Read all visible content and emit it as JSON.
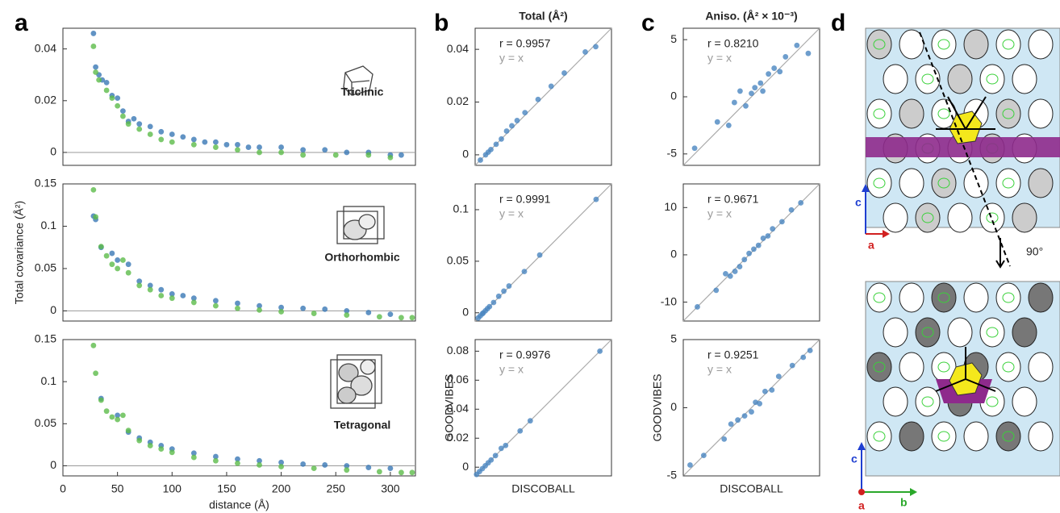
{
  "panel_labels": [
    "a",
    "b",
    "c",
    "d"
  ],
  "diagram": {
    "labels": [
      "c",
      "a",
      "90°",
      "c",
      "b",
      "a"
    ]
  },
  "chart_data": [
    {
      "type": "scatter",
      "annotations": [
        "Triclinic"
      ],
      "xlim": [
        0,
        323
      ],
      "ylim": [
        -0.005,
        0.048
      ],
      "yticks": [
        0,
        0.02,
        0.04
      ],
      "zero_line": true,
      "series": [
        {
          "color": "#3a78b5",
          "x": [
            28,
            30,
            33,
            36,
            40,
            45,
            50,
            55,
            60,
            65,
            70,
            80,
            90,
            100,
            110,
            120,
            130,
            140,
            150,
            160,
            170,
            180,
            200,
            220,
            240,
            260,
            280,
            300,
            310
          ],
          "values": [
            0.046,
            0.033,
            0.03,
            0.028,
            0.027,
            0.022,
            0.021,
            0.016,
            0.012,
            0.013,
            0.011,
            0.01,
            0.008,
            0.007,
            0.006,
            0.005,
            0.004,
            0.004,
            0.003,
            0.003,
            0.002,
            0.002,
            0.002,
            0.001,
            0.001,
            0.0,
            0.0,
            -0.001,
            -0.001
          ]
        },
        {
          "color": "#5dbb4a",
          "x": [
            28,
            30,
            33,
            40,
            45,
            50,
            55,
            60,
            70,
            80,
            90,
            100,
            120,
            140,
            160,
            180,
            200,
            220,
            250,
            280,
            300
          ],
          "values": [
            0.041,
            0.031,
            0.028,
            0.024,
            0.021,
            0.018,
            0.014,
            0.011,
            0.009,
            0.007,
            0.005,
            0.004,
            0.003,
            0.002,
            0.001,
            0.0,
            0.0,
            -0.001,
            -0.001,
            -0.001,
            -0.002
          ]
        }
      ]
    },
    {
      "type": "scatter",
      "annotations": [
        "Orthorhombic"
      ],
      "ylabel": "Total covariance (Å²)",
      "xlim": [
        0,
        323
      ],
      "ylim": [
        -0.012,
        0.15
      ],
      "yticks": [
        0,
        0.05,
        0.1,
        0.15
      ],
      "zero_line": true,
      "series": [
        {
          "color": "#3a78b5",
          "x": [
            28,
            30,
            35,
            45,
            50,
            60,
            70,
            80,
            90,
            100,
            110,
            120,
            140,
            160,
            180,
            200,
            220,
            240,
            260,
            280,
            300
          ],
          "values": [
            0.112,
            0.108,
            0.075,
            0.068,
            0.06,
            0.055,
            0.035,
            0.03,
            0.025,
            0.02,
            0.018,
            0.015,
            0.012,
            0.009,
            0.006,
            0.004,
            0.003,
            0.002,
            0,
            -0.002,
            -0.004
          ]
        },
        {
          "color": "#5dbb4a",
          "x": [
            28,
            30,
            35,
            40,
            45,
            50,
            55,
            60,
            70,
            80,
            90,
            100,
            120,
            140,
            160,
            180,
            200,
            230,
            260,
            290,
            310,
            320
          ],
          "values": [
            0.143,
            0.111,
            0.076,
            0.065,
            0.055,
            0.05,
            0.06,
            0.045,
            0.03,
            0.025,
            0.018,
            0.015,
            0.01,
            0.006,
            0.003,
            0.001,
            -0.001,
            -0.003,
            -0.005,
            -0.007,
            -0.008,
            -0.008
          ]
        }
      ]
    },
    {
      "type": "scatter",
      "annotations": [
        "Tetragonal"
      ],
      "xlabel": "distance (Å)",
      "xlim": [
        0,
        323
      ],
      "xticks": [
        0,
        50,
        100,
        150,
        200,
        250,
        300
      ],
      "ylim": [
        -0.012,
        0.15
      ],
      "yticks": [
        0,
        0.05,
        0.1,
        0.15
      ],
      "zero_line": true,
      "series": [
        {
          "color": "#3a78b5",
          "x": [
            35,
            50,
            60,
            70,
            80,
            90,
            100,
            120,
            140,
            160,
            180,
            200,
            220,
            240,
            260,
            280,
            300
          ],
          "values": [
            0.08,
            0.06,
            0.04,
            0.033,
            0.028,
            0.024,
            0.02,
            0.015,
            0.011,
            0.008,
            0.006,
            0.004,
            0.002,
            0.001,
            0,
            -0.002,
            -0.003
          ]
        },
        {
          "color": "#5dbb4a",
          "x": [
            28,
            30,
            35,
            40,
            45,
            50,
            55,
            60,
            70,
            80,
            90,
            100,
            120,
            140,
            160,
            180,
            200,
            230,
            260,
            290,
            310,
            320
          ],
          "values": [
            0.143,
            0.11,
            0.078,
            0.065,
            0.058,
            0.055,
            0.06,
            0.042,
            0.03,
            0.024,
            0.02,
            0.016,
            0.01,
            0.006,
            0.003,
            0.001,
            -0.001,
            -0.003,
            -0.005,
            -0.007,
            -0.008,
            -0.008
          ]
        }
      ]
    },
    {
      "type": "scatter",
      "title": "Total (Å²)",
      "annotations": [
        "r = 0.9957",
        "y = x"
      ],
      "identity_line": true,
      "xlim": [
        -0.004,
        0.048
      ],
      "ylim": [
        -0.004,
        0.048
      ],
      "yticks": [
        0,
        0.02,
        0.04
      ],
      "series": [
        {
          "color": "#4a86c0",
          "x": [
            -0.002,
            0,
            0.001,
            0.002,
            0.004,
            0.006,
            0.008,
            0.01,
            0.012,
            0.015,
            0.02,
            0.025,
            0.03,
            0.038,
            0.042
          ],
          "values": [
            -0.002,
            0,
            0.001,
            0.002,
            0.004,
            0.006,
            0.009,
            0.011,
            0.013,
            0.016,
            0.021,
            0.026,
            0.031,
            0.039,
            0.041
          ]
        }
      ]
    },
    {
      "type": "scatter",
      "annotations": [
        "r = 0.9991",
        "y = x"
      ],
      "identity_line": true,
      "xlim": [
        -0.008,
        0.125
      ],
      "ylim": [
        -0.008,
        0.125
      ],
      "yticks": [
        0,
        0.05,
        0.1
      ],
      "series": [
        {
          "color": "#4a86c0",
          "x": [
            -0.005,
            -0.003,
            -0.001,
            0,
            0.002,
            0.004,
            0.006,
            0.01,
            0.015,
            0.02,
            0.025,
            0.04,
            0.055,
            0.11
          ],
          "values": [
            -0.005,
            -0.003,
            -0.001,
            0,
            0.002,
            0.004,
            0.006,
            0.01,
            0.016,
            0.021,
            0.026,
            0.04,
            0.056,
            0.11
          ]
        }
      ]
    },
    {
      "type": "scatter",
      "annotations": [
        "r = 0.9976",
        "y = x"
      ],
      "identity_line": true,
      "xlabel": "DISCOBALL",
      "ylabel": "GOODVIBES",
      "xlim": [
        -0.006,
        0.088
      ],
      "ylim": [
        -0.006,
        0.088
      ],
      "yticks": [
        0,
        0.02,
        0.04,
        0.06,
        0.08
      ],
      "series": [
        {
          "color": "#4a86c0",
          "x": [
            -0.005,
            -0.003,
            -0.001,
            0.001,
            0.003,
            0.005,
            0.008,
            0.012,
            0.015,
            0.025,
            0.032,
            0.08
          ],
          "values": [
            -0.005,
            -0.003,
            -0.001,
            0.001,
            0.003,
            0.005,
            0.008,
            0.013,
            0.015,
            0.025,
            0.032,
            0.08
          ]
        }
      ]
    },
    {
      "type": "scatter",
      "title": "Aniso. (Å² × 10⁻³)",
      "annotations": [
        "r = 0.8210",
        "y = x"
      ],
      "identity_line": true,
      "xlim": [
        -6,
        6
      ],
      "ylim": [
        -6,
        6
      ],
      "yticks": [
        -5,
        0,
        5
      ],
      "series": [
        {
          "color": "#4a86c0",
          "x": [
            -5,
            -3,
            -2,
            -1.5,
            -1,
            -0.5,
            0,
            0.3,
            0.8,
            1,
            1.5,
            2,
            2.5,
            3,
            4,
            5
          ],
          "values": [
            -4.5,
            -2.2,
            -2.5,
            -0.5,
            0.5,
            -0.8,
            0.3,
            0.8,
            1.2,
            0.5,
            2,
            2.5,
            2.2,
            3.5,
            4.5,
            3.8
          ]
        }
      ]
    },
    {
      "type": "scatter",
      "annotations": [
        "r = 0.9671",
        "y = x"
      ],
      "identity_line": true,
      "xlim": [
        -14,
        15
      ],
      "ylim": [
        -14,
        15
      ],
      "yticks": [
        -10,
        0,
        10
      ],
      "series": [
        {
          "color": "#4a86c0",
          "x": [
            -11,
            -7,
            -5,
            -4,
            -3,
            -2,
            -1,
            0,
            1,
            2,
            3,
            4,
            5,
            7,
            9,
            11
          ],
          "values": [
            -11,
            -7.5,
            -4,
            -4.5,
            -3.5,
            -2.5,
            -1,
            0.3,
            1.2,
            2,
            3.5,
            4,
            5.5,
            7,
            9.5,
            11
          ]
        }
      ]
    },
    {
      "type": "scatter",
      "annotations": [
        "r = 0.9251",
        "y = x"
      ],
      "identity_line": true,
      "xlabel": "DISCOBALL",
      "ylabel": "GOODVIBES",
      "xlim": [
        -5,
        5
      ],
      "ylim": [
        -5,
        5
      ],
      "yticks": [
        -5,
        0,
        5
      ],
      "series": [
        {
          "color": "#4a86c0",
          "x": [
            -4.5,
            -3.5,
            -2,
            -1.5,
            -1,
            -0.5,
            0,
            0.3,
            0.6,
            1,
            1.5,
            2,
            3,
            3.8,
            4.3
          ],
          "values": [
            -4.2,
            -3.5,
            -2.3,
            -1.2,
            -0.9,
            -0.6,
            -0.3,
            0.4,
            0.3,
            1.2,
            1.3,
            2.3,
            3.1,
            3.7,
            4.2
          ]
        }
      ]
    }
  ]
}
